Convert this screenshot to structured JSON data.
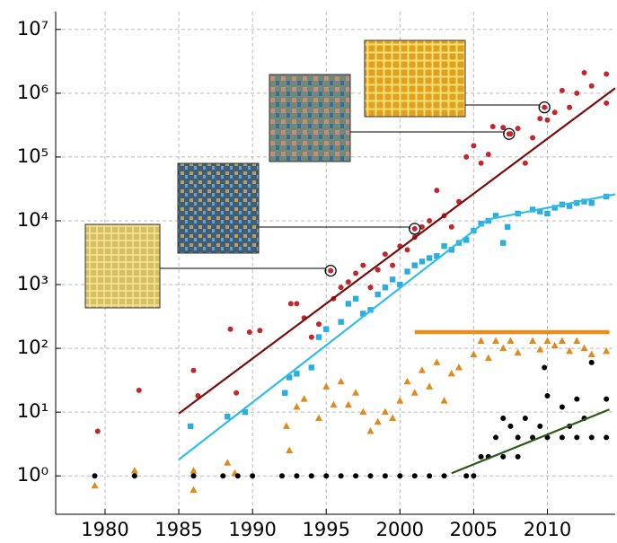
{
  "chart_data": {
    "type": "scatter",
    "xlim": [
      1976.65,
      2014.6
    ],
    "ylim": [
      0.25,
      19000000
    ],
    "log_y": true,
    "grid": true,
    "xticks": [
      1980,
      1985,
      1990,
      1995,
      2000,
      2005,
      2010
    ],
    "yticks": [
      {
        "value": 1,
        "label": "10⁰"
      },
      {
        "value": 10,
        "label": "10¹"
      },
      {
        "value": 100,
        "label": "10²"
      },
      {
        "value": 1000,
        "label": "10³"
      },
      {
        "value": 10000,
        "label": "10⁴"
      },
      {
        "value": 100000,
        "label": "10⁵"
      },
      {
        "value": 1000000,
        "label": "10⁶"
      },
      {
        "value": 10000000,
        "label": "10⁷"
      }
    ],
    "series": [
      {
        "marker": "circle",
        "color": "#c1272d",
        "x": [
          1979.5,
          1982.3,
          1986,
          1986.3,
          1988.5,
          1988.9,
          1989.8,
          1990.5,
          1992.6,
          1993.5,
          1993,
          1994,
          1994.5,
          1995.5,
          1996,
          1996.5,
          1997,
          1997.5,
          1998,
          1998.5,
          1999,
          1999.5,
          2000,
          2000.5,
          2001,
          2001.5,
          2002,
          2002.5,
          2003,
          2003.5,
          2004,
          2004.5,
          2005,
          2005.5,
          2006,
          2006.3,
          2007,
          2007.5,
          2008,
          2008.5,
          2009,
          2009.5,
          2010,
          2010.5,
          2011,
          2011.5,
          2012,
          2012.5,
          2013,
          2014,
          2014
        ],
        "values": [
          5,
          22,
          45,
          18,
          200,
          20,
          180,
          190,
          500,
          300,
          500,
          150,
          240,
          600,
          900,
          1100,
          1500,
          2000,
          900,
          1700,
          3000,
          2000,
          4000,
          3500,
          5500,
          8000,
          10000,
          30000,
          12000,
          8000,
          20000,
          100000,
          150000,
          80000,
          110000,
          300000,
          290000,
          230000,
          280000,
          80000,
          200000,
          400000,
          380000,
          500000,
          1100000,
          600000,
          1000000,
          2100000,
          1300000,
          2000000,
          700000
        ]
      },
      {
        "marker": "square",
        "color": "#2aaee0",
        "x": [
          1985.8,
          1988.3,
          1989.5,
          1992.2,
          1992.5,
          1993,
          1994,
          1994.5,
          1995,
          1996,
          1996.5,
          1997,
          1997.5,
          1998,
          1998.5,
          1999,
          1999.5,
          2000,
          2000.5,
          2001,
          2001.5,
          2002,
          2002.5,
          2003,
          2003.5,
          2004,
          2004.5,
          2005,
          2005.5,
          2006,
          2006.5,
          2007,
          2007.3,
          2008,
          2009,
          2009.5,
          2010,
          2010.5,
          2011,
          2011.5,
          2012,
          2012.5,
          2013,
          2014
        ],
        "values": [
          6,
          8.5,
          10,
          20,
          35,
          40,
          50,
          150,
          200,
          260,
          500,
          600,
          350,
          400,
          700,
          900,
          1200,
          1000,
          1600,
          2000,
          2300,
          2600,
          2800,
          4000,
          3500,
          4500,
          5000,
          7000,
          9000,
          10000,
          12000,
          4500,
          8000,
          13000,
          15000,
          14000,
          13000,
          16000,
          18000,
          17000,
          19000,
          20000,
          19000,
          24000
        ]
      },
      {
        "marker": "triangle",
        "color": "#e08a1e",
        "x": [
          1979.3,
          1982,
          1986,
          1986,
          1988.3,
          1988.8,
          1992.3,
          1992.5,
          1993,
          1993.5,
          1994.5,
          1995,
          1995.5,
          1996,
          1996.5,
          1997,
          1997.5,
          1998,
          1998.5,
          1999,
          1999.5,
          2000,
          2000.5,
          2001,
          2001.5,
          2002,
          2002.5,
          2003,
          2003.5,
          2004,
          2005,
          2005.5,
          2006,
          2006.5,
          2007,
          2007.5,
          2008,
          2009,
          2009.5,
          2010,
          2010.5,
          2011,
          2011.5,
          2012,
          2012.5,
          2013,
          2014
        ],
        "values": [
          0.7,
          1.2,
          0.6,
          1.2,
          1.6,
          1.1,
          6,
          2.5,
          12,
          16,
          8,
          25,
          13,
          30,
          13,
          20,
          10,
          5,
          7,
          10,
          8,
          15,
          30,
          20,
          45,
          25,
          60,
          15,
          40,
          50,
          80,
          130,
          70,
          130,
          100,
          130,
          85,
          130,
          95,
          130,
          110,
          130,
          90,
          130,
          100,
          80,
          90
        ]
      },
      {
        "marker": "dot",
        "color": "#000000",
        "x": [
          1979.3,
          1982,
          1986,
          1988,
          1989,
          1990,
          1992,
          1993,
          1994,
          1995,
          1996,
          1997,
          1998,
          1999,
          2000,
          2001,
          2002,
          2003,
          2004.5,
          2005,
          2005.5,
          2006,
          2006.5,
          2007,
          2007,
          2007.5,
          2008,
          2008,
          2008.5,
          2009,
          2009.5,
          2009.8,
          2010,
          2010,
          2011,
          2011,
          2011.5,
          2012,
          2012,
          2012.5,
          2013,
          2013,
          2014,
          2014
        ],
        "values": [
          1,
          1,
          1,
          1,
          1,
          1,
          1,
          1,
          1,
          1,
          1,
          1,
          1,
          1,
          1,
          1,
          1,
          1,
          1,
          1,
          2,
          2,
          4,
          2,
          8,
          6,
          4,
          2,
          8,
          4,
          6,
          50,
          4,
          18,
          4,
          12,
          6,
          4,
          16,
          8,
          4,
          60,
          4,
          16
        ]
      },
      {
        "marker": "line",
        "color": "#7a0c0c",
        "x": [
          1985,
          2014.6
        ],
        "values": [
          9.5,
          1200000
        ]
      },
      {
        "marker": "line",
        "color": "#2fbde8",
        "x": [
          1985,
          2006,
          2014.6
        ],
        "values": [
          1.8,
          10500,
          26000
        ]
      },
      {
        "marker": "line",
        "color": "#2d5a16",
        "x": [
          2003.5,
          2014.2
        ],
        "values": [
          1.1,
          11
        ]
      },
      {
        "marker": "thick-line",
        "color": "#e88e1f",
        "x": [
          2001,
          2014.2
        ],
        "values": [
          180,
          180
        ]
      }
    ],
    "callouts": [
      {
        "x": 1995.3,
        "y": 1650,
        "color": "#e8d878"
      },
      {
        "x": 2001,
        "y": 7500,
        "color": "#3f6f9a"
      },
      {
        "x": 2007.4,
        "y": 230000,
        "color": "#5a7a5a"
      },
      {
        "x": 2009.8,
        "y": 600000,
        "color": "#e8a020"
      }
    ]
  }
}
